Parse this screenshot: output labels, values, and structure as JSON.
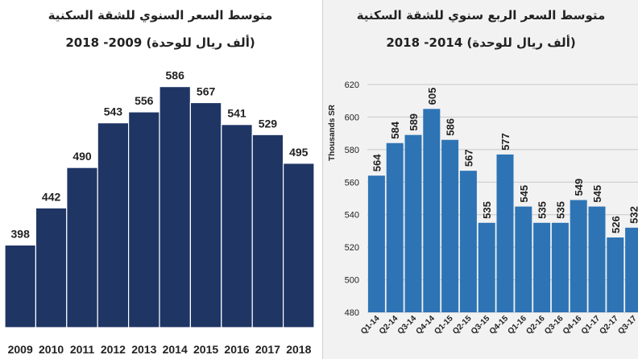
{
  "chart_data": [
    {
      "type": "bar",
      "title": "متوسط السعر السنوي للشقة السكنية",
      "subtitle": "(ألف ريال للوحدة)  2009- 2018",
      "xlabel": "",
      "ylabel": "",
      "categories": [
        "2009",
        "2010",
        "2011",
        "2012",
        "2013",
        "2014",
        "2015",
        "2016",
        "2017",
        "2018"
      ],
      "values": [
        398,
        442,
        490,
        543,
        556,
        586,
        567,
        541,
        529,
        495
      ],
      "value_labels": [
        "398",
        "442",
        "490",
        "543",
        "556",
        "586",
        "567",
        "541",
        "529",
        "495"
      ],
      "ylim": [
        300,
        620
      ],
      "color": "#1f3564",
      "grid": false
    },
    {
      "type": "bar",
      "title": "متوسط السعر الربع سنوي للشقة السكنية",
      "subtitle": "(ألف ريال للوحدة) 2014- 2018",
      "xlabel": "",
      "ylabel": "Thousands SR",
      "categories": [
        "Q1-14",
        "Q2-14",
        "Q3-14",
        "Q4-14",
        "Q1-15",
        "Q2-15",
        "Q3-15",
        "Q4-15",
        "Q1-16",
        "Q2-16",
        "Q3-16",
        "Q4-16",
        "Q1-17",
        "Q2-17",
        "Q3-17"
      ],
      "values": [
        564,
        584,
        589,
        605,
        586,
        567,
        535,
        577,
        545,
        535,
        535,
        549,
        545,
        526,
        532
      ],
      "value_labels": [
        "564",
        "584",
        "589",
        "605",
        "586",
        "567",
        "535",
        "577",
        "545",
        "535",
        "535",
        "549",
        "545",
        "526",
        "532"
      ],
      "yticks": [
        "480",
        "500",
        "520",
        "540",
        "560",
        "580",
        "600",
        "620"
      ],
      "ylim": [
        480,
        620
      ],
      "color": "#2e74b5",
      "grid": true
    }
  ]
}
